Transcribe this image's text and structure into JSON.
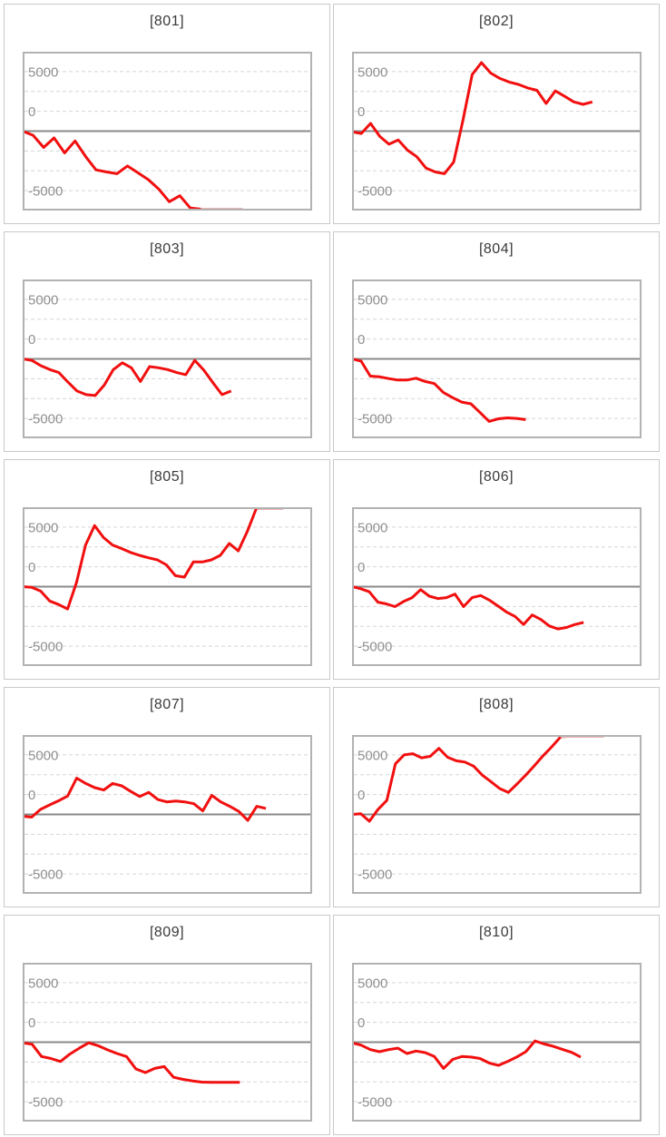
{
  "page": {
    "background": "#ffffff"
  },
  "colors": {
    "series": "#f10f0f",
    "series_clipped": "#edb4b4",
    "zero_line": "#8a8a8a",
    "gridline": "#d5d5d5",
    "tick_label": "#8f8f8f",
    "title": "#3a3a3a",
    "plot_border": "#b2b2b2",
    "card_border": "#c9c9c9"
  },
  "axis": {
    "tick_labels": [
      "5000",
      "0",
      "-5000"
    ],
    "tick_values": [
      5000,
      0,
      -5000
    ],
    "grid": true,
    "gridline_style": "dashed",
    "legend": "none"
  },
  "chart_data": [
    {
      "type": "line",
      "title": "[801]",
      "ylim": [
        -6670,
        6670
      ],
      "yticks": [
        5000,
        0,
        -5000
      ],
      "x_end_fraction": 0.76,
      "clip_tail_start": 17,
      "values": [
        0,
        -350,
        -1375,
        -575,
        -1825,
        -825,
        -2125,
        -3250,
        -3425,
        -3575,
        -2925,
        -3500,
        -4075,
        -4875,
        -5925,
        -5425,
        -6450,
        -6600,
        -6600,
        -6600,
        -6600,
        -6600
      ]
    },
    {
      "type": "line",
      "title": "[802]",
      "ylim": [
        -6670,
        6670
      ],
      "yticks": [
        5000,
        0,
        -5000
      ],
      "x_end_fraction": 0.83,
      "clip_tail_start": null,
      "values": [
        -50,
        -200,
        650,
        -450,
        -1100,
        -750,
        -1600,
        -2150,
        -3100,
        -3425,
        -3575,
        -2600,
        900,
        4750,
        5750,
        4875,
        4425,
        4125,
        3925,
        3625,
        3425,
        2325,
        3375,
        2925,
        2450,
        2250,
        2450
      ]
    },
    {
      "type": "line",
      "title": "[803]",
      "ylim": [
        -6670,
        6670
      ],
      "yticks": [
        5000,
        0,
        -5000
      ],
      "x_end_fraction": 0.72,
      "clip_tail_start": null,
      "values": [
        0,
        -125,
        -575,
        -900,
        -1150,
        -1950,
        -2700,
        -3000,
        -3075,
        -2200,
        -900,
        -325,
        -750,
        -1900,
        -650,
        -750,
        -900,
        -1150,
        -1325,
        -125,
        -950,
        -2000,
        -3000,
        -2700
      ]
    },
    {
      "type": "line",
      "title": "[804]",
      "ylim": [
        -6670,
        6670
      ],
      "yticks": [
        5000,
        0,
        -5000
      ],
      "x_end_fraction": 0.6,
      "clip_tail_start": null,
      "values": [
        0,
        -200,
        -1450,
        -1500,
        -1650,
        -1775,
        -1775,
        -1625,
        -1900,
        -2075,
        -2825,
        -3250,
        -3625,
        -3775,
        -4500,
        -5250,
        -5025,
        -4950,
        -5000,
        -5100
      ]
    },
    {
      "type": "line",
      "title": "[805]",
      "ylim": [
        -6670,
        6670
      ],
      "yticks": [
        5000,
        0,
        -5000
      ],
      "x_end_fraction": 0.9,
      "clip_tail_start": 26,
      "values": [
        0,
        -50,
        -375,
        -1200,
        -1500,
        -1875,
        375,
        3500,
        5125,
        4125,
        3500,
        3200,
        2875,
        2625,
        2425,
        2250,
        1825,
        925,
        800,
        2075,
        2075,
        2250,
        2625,
        3625,
        3000,
        4625,
        6600,
        6600,
        6600,
        6600
      ]
    },
    {
      "type": "line",
      "title": "[806]",
      "ylim": [
        -6670,
        6670
      ],
      "yticks": [
        5000,
        0,
        -5000
      ],
      "x_end_fraction": 0.8,
      "clip_tail_start": null,
      "values": [
        0,
        -175,
        -425,
        -1300,
        -1450,
        -1675,
        -1250,
        -925,
        -250,
        -800,
        -1000,
        -925,
        -625,
        -1675,
        -925,
        -750,
        -1125,
        -1625,
        -2125,
        -2500,
        -3175,
        -2375,
        -2750,
        -3300,
        -3550,
        -3425,
        -3175,
        -3000
      ]
    },
    {
      "type": "line",
      "title": "[807]",
      "ylim": [
        -6670,
        6670
      ],
      "yticks": [
        5000,
        0,
        -5000
      ],
      "x_end_fraction": 0.84,
      "clip_tail_start": null,
      "values": [
        -150,
        -225,
        425,
        800,
        1150,
        1550,
        3050,
        2600,
        2250,
        2050,
        2600,
        2400,
        1925,
        1500,
        1850,
        1250,
        1050,
        1125,
        1050,
        900,
        300,
        1600,
        1050,
        675,
        250,
        -500,
        675,
        500
      ]
    },
    {
      "type": "line",
      "title": "[808]",
      "ylim": [
        -6670,
        6670
      ],
      "yticks": [
        5000,
        0,
        -5000
      ],
      "x_end_fraction": 0.87,
      "clip_tail_start": 24,
      "values": [
        0,
        50,
        -575,
        425,
        1175,
        4250,
        5000,
        5100,
        4750,
        4875,
        5550,
        4800,
        4500,
        4400,
        4050,
        3300,
        2750,
        2175,
        1850,
        2550,
        3300,
        4100,
        4925,
        5675,
        6500,
        6600,
        6600,
        6600,
        6600,
        6600
      ]
    },
    {
      "type": "line",
      "title": "[809]",
      "ylim": [
        -6670,
        6670
      ],
      "yticks": [
        5000,
        0,
        -5000
      ],
      "x_end_fraction": 0.75,
      "clip_tail_start": null,
      "values": [
        -50,
        -175,
        -1200,
        -1375,
        -1625,
        -1000,
        -500,
        -50,
        -300,
        -650,
        -950,
        -1200,
        -2250,
        -2550,
        -2200,
        -2050,
        -2950,
        -3125,
        -3250,
        -3350,
        -3375,
        -3375,
        -3375,
        -3375
      ]
    },
    {
      "type": "line",
      "title": "[810]",
      "ylim": [
        -6670,
        6670
      ],
      "yticks": [
        5000,
        0,
        -5000
      ],
      "x_end_fraction": 0.79,
      "clip_tail_start": null,
      "values": [
        -50,
        -250,
        -625,
        -800,
        -625,
        -500,
        -950,
        -750,
        -875,
        -1200,
        -2200,
        -1450,
        -1200,
        -1250,
        -1375,
        -1750,
        -1950,
        -1625,
        -1250,
        -800,
        100,
        -150,
        -350,
        -600,
        -850,
        -1250
      ]
    }
  ]
}
